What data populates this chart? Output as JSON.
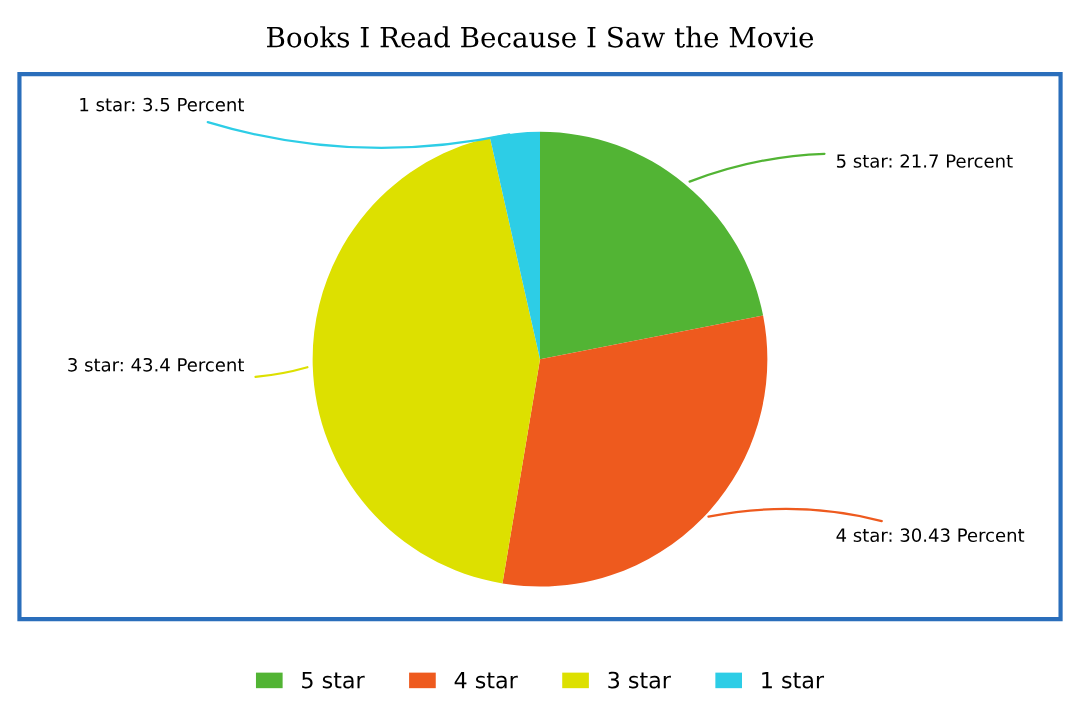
{
  "chart_data": {
    "type": "pie",
    "title": "Books I Read Because I Saw the Movie",
    "categories": [
      "5 star",
      "4 star",
      "3 star",
      "1 star"
    ],
    "values": [
      21.7,
      30.43,
      43.4,
      3.5
    ],
    "colors": [
      "#52b434",
      "#ee5a1e",
      "#dde000",
      "#2dcde6"
    ],
    "value_labels": [
      "5 star: 21.7 Percent",
      "4 star: 30.43 Percent",
      "3 star: 43.4 Percent",
      "1 star: 3.5 Percent"
    ],
    "legend": "bottom"
  }
}
